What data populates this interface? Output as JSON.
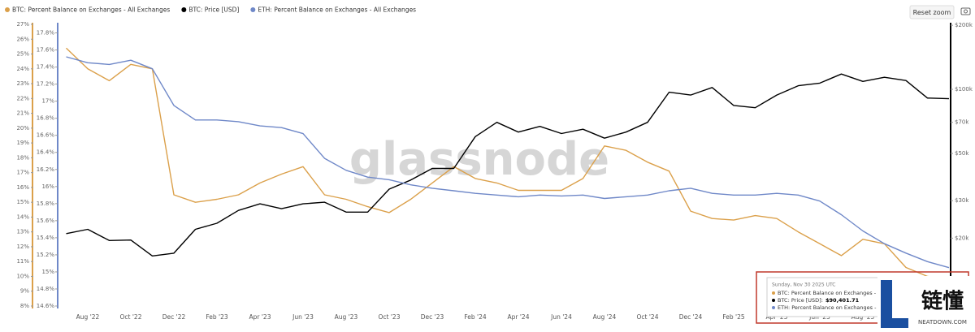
{
  "chart_data": {
    "type": "line",
    "categories": [
      null,
      "Aug '22",
      null,
      "Oct '22",
      null,
      "Dec '22",
      null,
      "Feb '23",
      null,
      "Apr '23",
      null,
      "Jun '23",
      null,
      "Aug '23",
      null,
      "Oct '23",
      null,
      "Dec '23",
      null,
      "Feb '24",
      null,
      "Apr '24",
      null,
      "Jun '24",
      null,
      "Aug '24",
      null,
      "Oct '24",
      null,
      "Dec '24",
      null,
      "Feb '25",
      null,
      "Apr '25",
      null,
      "Jun '25",
      null,
      "Aug '25",
      null,
      null,
      null,
      null
    ],
    "series": [
      {
        "name": "BTC: Percent Balance on Exchanges - All Exchanges",
        "color": "#dba04a",
        "axis": "y",
        "values": [
          25.4,
          24.0,
          23.2,
          24.3,
          24.0,
          15.5,
          15.0,
          15.2,
          15.5,
          16.3,
          16.9,
          17.4,
          15.5,
          15.2,
          14.7,
          14.3,
          15.2,
          16.3,
          17.4,
          16.6,
          16.3,
          15.8,
          15.8,
          15.8,
          16.6,
          18.8,
          18.5,
          17.7,
          17.1,
          14.4,
          13.9,
          13.8,
          14.1,
          13.9,
          13.0,
          12.2,
          11.4,
          12.5,
          12.2,
          10.6,
          10.0,
          9.8
        ]
      },
      {
        "name": "BTC: Price [USD]",
        "color": "#000000",
        "axis": "y3",
        "values": [
          21000,
          22000,
          19500,
          19600,
          16500,
          17000,
          22000,
          23500,
          27000,
          29000,
          27500,
          29000,
          29500,
          26500,
          26500,
          34000,
          37500,
          42500,
          42500,
          60000,
          70000,
          63000,
          67000,
          62000,
          65000,
          59000,
          63000,
          70000,
          97000,
          94000,
          102000,
          84000,
          82000,
          94000,
          104000,
          107000,
          118000,
          109000,
          114000,
          110000,
          91000,
          90401.71
        ]
      },
      {
        "name": "ETH: Percent Balance on Exchanges - All Exchanges",
        "color": "#6f88c8",
        "axis": "y2",
        "values": [
          17.52,
          17.45,
          17.43,
          17.48,
          17.38,
          16.95,
          16.78,
          16.78,
          16.76,
          16.71,
          16.69,
          16.62,
          16.33,
          16.19,
          16.11,
          16.08,
          16.02,
          15.98,
          15.95,
          15.92,
          15.9,
          15.88,
          15.9,
          15.89,
          15.9,
          15.86,
          15.88,
          15.9,
          15.95,
          15.98,
          15.92,
          15.9,
          15.9,
          15.92,
          15.9,
          15.83,
          15.67,
          15.48,
          15.33,
          15.22,
          15.12,
          15.05
        ]
      }
    ],
    "ylim": [
      8,
      27
    ],
    "yticks": [
      {
        "value": 8,
        "label": "8%"
      },
      {
        "value": 9,
        "label": "9%"
      },
      {
        "value": 10,
        "label": "10%"
      },
      {
        "value": 11,
        "label": "11%"
      },
      {
        "value": 12,
        "label": "12%"
      },
      {
        "value": 13,
        "label": "13%"
      },
      {
        "value": 14,
        "label": "14%"
      },
      {
        "value": 15,
        "label": "15%"
      },
      {
        "value": 16,
        "label": "16%"
      },
      {
        "value": 17,
        "label": "17%"
      },
      {
        "value": 18,
        "label": "18%"
      },
      {
        "value": 19,
        "label": "19%"
      },
      {
        "value": 20,
        "label": "20%"
      },
      {
        "value": 21,
        "label": "21%"
      },
      {
        "value": 22,
        "label": "22%"
      },
      {
        "value": 23,
        "label": "23%"
      },
      {
        "value": 24,
        "label": "24%"
      },
      {
        "value": 25,
        "label": "25%"
      },
      {
        "value": 26,
        "label": "26%"
      },
      {
        "value": 27,
        "label": "27%"
      }
    ],
    "y2lim": [
      14.6,
      17.9
    ],
    "y2ticks": [
      {
        "value": 14.6,
        "label": "14.6%"
      },
      {
        "value": 14.8,
        "label": "14.8%"
      },
      {
        "value": 15,
        "label": "15%"
      },
      {
        "value": 15.2,
        "label": "15.2%"
      },
      {
        "value": 15.4,
        "label": "15.4%"
      },
      {
        "value": 15.6,
        "label": "15.6%"
      },
      {
        "value": 15.8,
        "label": "15.8%"
      },
      {
        "value": 16,
        "label": "16%"
      },
      {
        "value": 16.2,
        "label": "16.2%"
      },
      {
        "value": 16.4,
        "label": "16.4%"
      },
      {
        "value": 16.6,
        "label": "16.6%"
      },
      {
        "value": 16.8,
        "label": "16.8%"
      },
      {
        "value": 17,
        "label": "17%"
      },
      {
        "value": 17.2,
        "label": "17.2%"
      },
      {
        "value": 17.4,
        "label": "17.4%"
      },
      {
        "value": 17.6,
        "label": "17.6%"
      },
      {
        "value": 17.8,
        "label": "17.8%"
      }
    ],
    "y3lim": [
      9600,
      202000
    ],
    "y3_scale": "log",
    "y3ticks": [
      {
        "value": 20000,
        "label": "$20k"
      },
      {
        "value": 30000,
        "label": "$30k"
      },
      {
        "value": 50000,
        "label": "$50k"
      },
      {
        "value": 70000,
        "label": "$70k"
      },
      {
        "value": 100000,
        "label": "$100k"
      },
      {
        "value": 200000,
        "label": "$200k"
      }
    ],
    "grid": false,
    "watermark": "glassnode",
    "reset_button": "Reset zoom",
    "tooltip": {
      "date": "Sunday, Nov 30 2025 UTC",
      "btc_balance": "BTC: Percent Balance on Exchanges - A",
      "btc_price": "BTC: Price [USD]:",
      "btc_price_value": "$90,401.71",
      "eth_balance": "ETH: Percent Balance on Exchanges - A"
    },
    "logo": {
      "name": "链懂",
      "site": "NEATDOWN.COM"
    }
  }
}
